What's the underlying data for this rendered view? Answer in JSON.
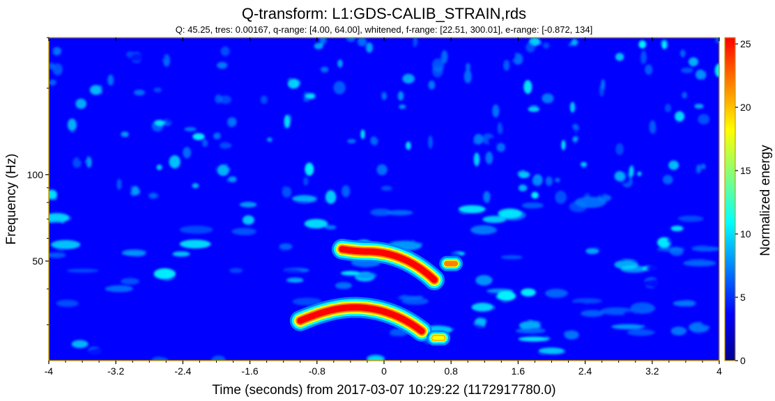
{
  "chart_data": {
    "type": "heatmap",
    "title": "Q-transform: L1:GDS-CALIB_STRAIN,rds",
    "subtitle": "Q: 45.25, tres: 0.00167, q-range: [4.00, 64.00], whitened, f-range: [22.51, 300.01], e-range: [-0.872, 134]",
    "xlabel": "Time (seconds) from 2017-03-07 10:29:22 (1172917780.0)",
    "ylabel": "Frequency (Hz)",
    "colorbar_label": "Normalized energy",
    "xlim": [
      -4,
      4
    ],
    "ylim": [
      22.51,
      300.01
    ],
    "y_scale": "log",
    "clim": [
      0,
      25.5
    ],
    "x_ticks": [
      "-4",
      "-3.2",
      "-2.4",
      "-1.6",
      "-0.8",
      "0",
      "0.8",
      "1.6",
      "2.4",
      "3.2",
      "4"
    ],
    "x_tick_values": [
      -4,
      -3.2,
      -2.4,
      -1.6,
      -0.8,
      0,
      0.8,
      1.6,
      2.4,
      3.2,
      4
    ],
    "y_ticks": [
      "50",
      "100"
    ],
    "y_tick_values": [
      50,
      100
    ],
    "colorbar_ticks": [
      "0",
      "5",
      "10",
      "15",
      "20",
      "25"
    ],
    "colorbar_tick_values": [
      0,
      5,
      10,
      15,
      20,
      25
    ],
    "colormap": [
      "#00008f",
      "#0000ff",
      "#0080ff",
      "#00ffff",
      "#80ff80",
      "#ffff00",
      "#ff8000",
      "#ff0000"
    ],
    "features": [
      {
        "x_start": -1.0,
        "x_peak": -0.35,
        "x_end": 0.45,
        "f_start": 31,
        "f_peak": 34.5,
        "f_end": 28.5,
        "energy": 25
      },
      {
        "x_start": -0.5,
        "x_peak": -0.2,
        "x_end": 0.6,
        "f_start": 55,
        "f_peak": 54,
        "f_end": 43,
        "energy": 24
      },
      {
        "x_start": 0.6,
        "x_peak": 0.65,
        "x_end": 0.7,
        "f_start": 27,
        "f_peak": 27,
        "f_end": 27,
        "energy": 20
      },
      {
        "x_start": 0.75,
        "x_peak": 0.8,
        "x_end": 0.85,
        "f_start": 49,
        "f_peak": 49,
        "f_end": 49,
        "energy": 22
      }
    ]
  }
}
